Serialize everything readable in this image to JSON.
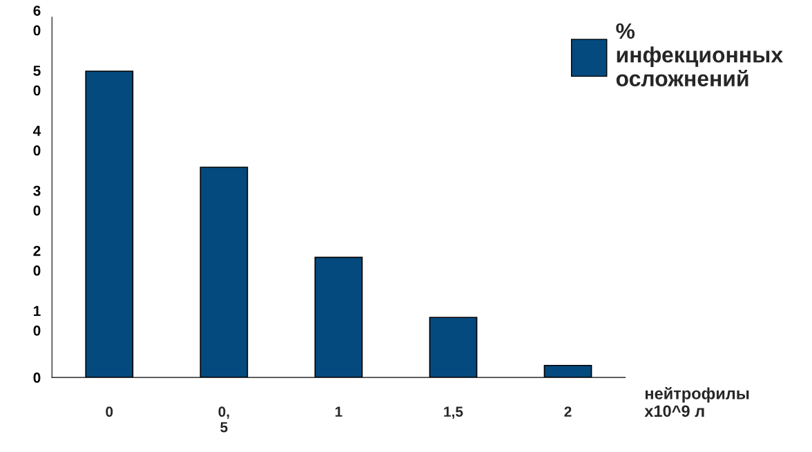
{
  "chart_data": {
    "type": "bar",
    "xlabel": "нейтрофилы\nх10^9 л",
    "categories": [
      "0",
      "0,\n5",
      "1",
      "1,5",
      "2"
    ],
    "series": [
      {
        "name": "%\nинфекционных\nосложнений",
        "color": "#044a7e",
        "values": [
          51,
          35,
          20,
          10,
          2
        ]
      }
    ],
    "ylim": [
      0,
      60
    ],
    "yticks": [
      0,
      10,
      20,
      30,
      40,
      50,
      60
    ],
    "grid": false,
    "legend": "top right"
  }
}
